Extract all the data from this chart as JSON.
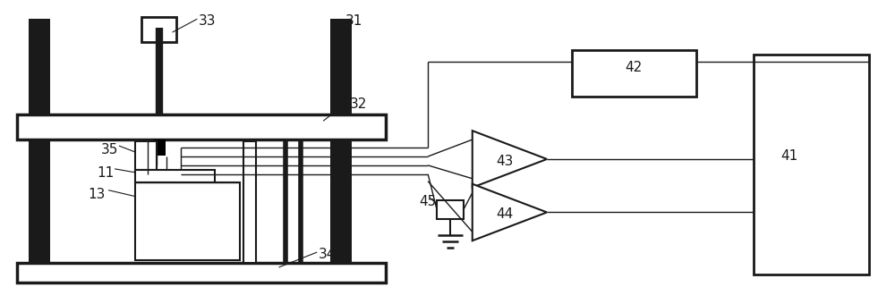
{
  "fig_width": 10.0,
  "fig_height": 3.4,
  "dpi": 100,
  "line_color": "#1a1a1a",
  "bg_color": "#ffffff",
  "label_fontsize": 11
}
